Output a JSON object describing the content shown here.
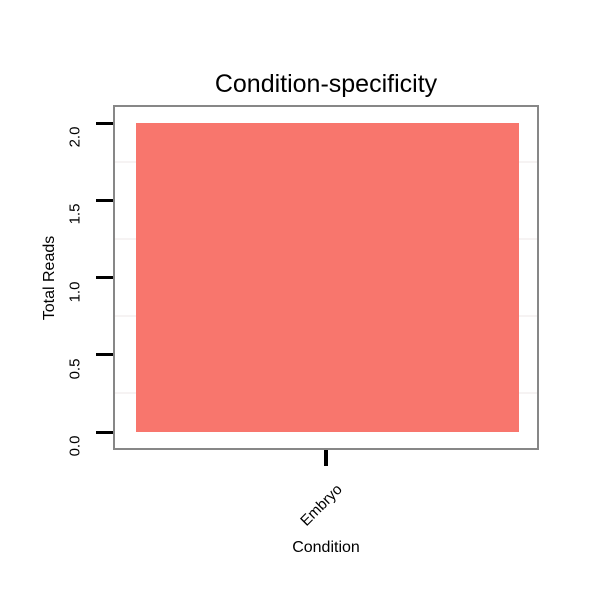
{
  "chart_data": {
    "type": "bar",
    "title": "Condition-specificity",
    "xlabel": "Condition",
    "ylabel": "Total Reads",
    "categories": [
      "Embryo"
    ],
    "values": [
      2
    ],
    "ylim": [
      0,
      2.07
    ],
    "yticks": [
      0,
      0.5,
      1,
      1.5,
      2
    ],
    "ytick_labels": [
      "0.0",
      "0.5",
      "1.0",
      "1.5",
      "2.0"
    ],
    "minor_gridlines": [
      0.25,
      0.75,
      1.25,
      1.75
    ],
    "legend": "none",
    "grid": "minor-horizontal-only",
    "bar_color": "#F8766D",
    "panel_border_color": "#878787",
    "gridline_color": "#F6F3F3",
    "tick_color": "#000000",
    "text_color": "#000000",
    "background_color": "#FFFFFF"
  }
}
